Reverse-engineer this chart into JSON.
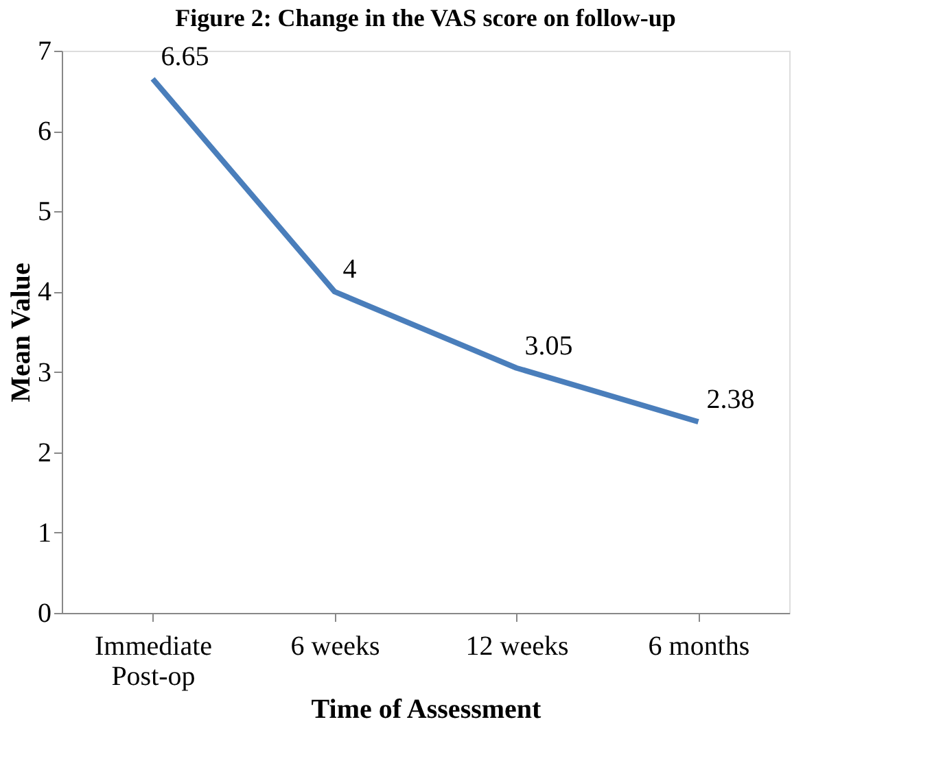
{
  "chart_data": {
    "type": "line",
    "title": "Figure 2: Change in the VAS score on follow-up",
    "xlabel": "Time of Assessment",
    "ylabel": "Mean Value",
    "categories": [
      "Immediate\nPost-op",
      "6 weeks",
      "12 weeks",
      "6 months"
    ],
    "series": [
      {
        "color": "#4a7ebb",
        "values": [
          6.65,
          4,
          3.05,
          2.38
        ]
      }
    ],
    "ylim": [
      0,
      7
    ],
    "yticks": [
      0,
      1,
      2,
      3,
      4,
      5,
      6,
      7
    ],
    "grid": false,
    "marker": "none",
    "line_style": "solid",
    "data_labels": true
  }
}
